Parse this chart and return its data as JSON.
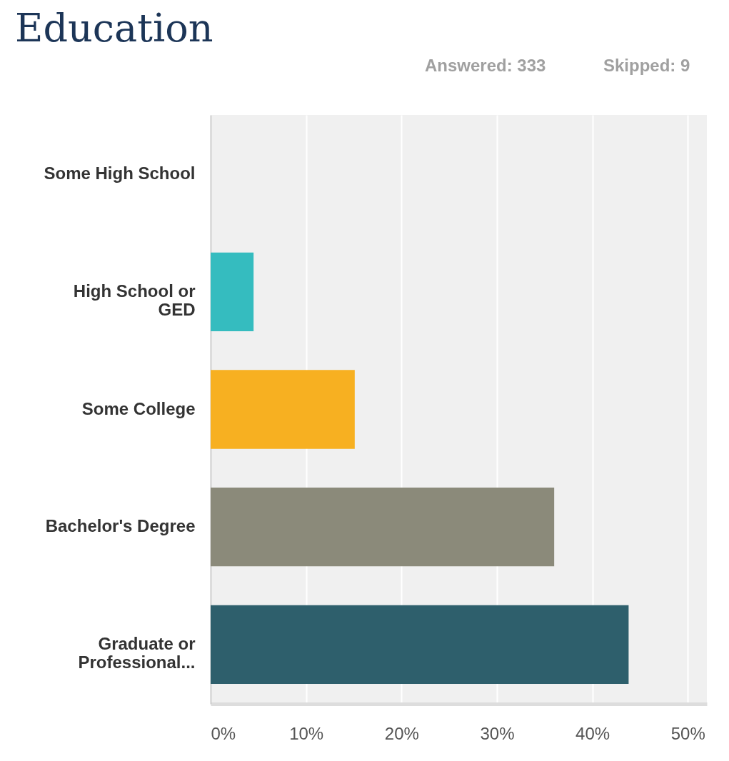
{
  "chart_data": {
    "type": "bar",
    "orientation": "horizontal",
    "title": "Education",
    "annotations": [
      "Answered: 333",
      "Skipped: 9"
    ],
    "categories": [
      "Some High School",
      "High School or GED",
      "Some College",
      "Bachelor's Degree",
      "Graduate or Professional..."
    ],
    "values": [
      0,
      4.5,
      15.1,
      36.0,
      43.8
    ],
    "colors": [
      "#76b043",
      "#35bcbf",
      "#f7b021",
      "#8b8a7a",
      "#2e5f6c"
    ],
    "xlim": [
      0,
      52
    ],
    "xticks": [
      {
        "value": 0,
        "label": "0%"
      },
      {
        "value": 10,
        "label": "10%"
      },
      {
        "value": 20,
        "label": "20%"
      },
      {
        "value": 30,
        "label": "30%"
      },
      {
        "value": 40,
        "label": "40%"
      },
      {
        "value": 50,
        "label": "50%"
      }
    ],
    "grid": "x"
  }
}
